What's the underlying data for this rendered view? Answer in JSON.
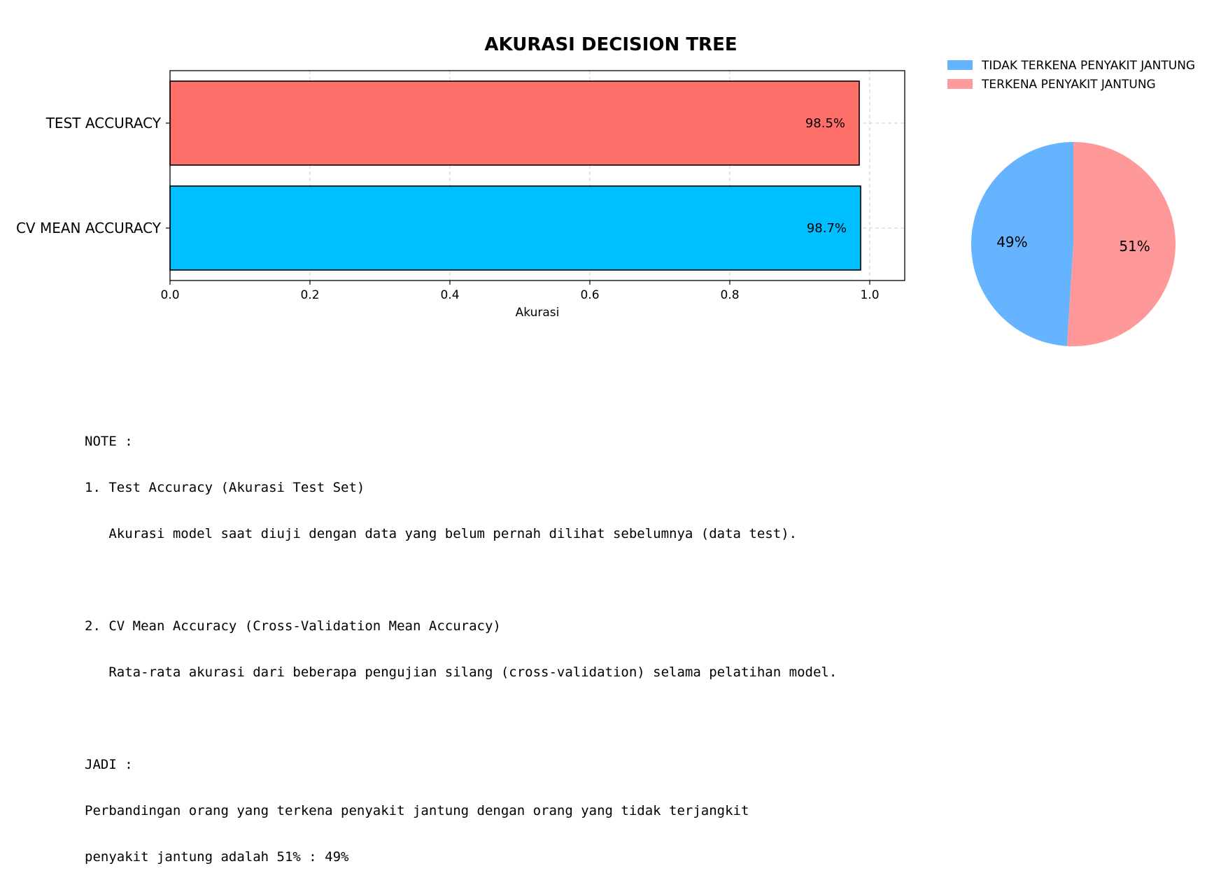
{
  "chart_data": [
    {
      "type": "bar",
      "orientation": "horizontal",
      "title": "AKURASI DECISION TREE",
      "xlabel": "Akurasi",
      "ylabel": "",
      "categories": [
        "TEST ACCURACY",
        "CV MEAN ACCURACY"
      ],
      "values": [
        0.985,
        0.987
      ],
      "value_labels": [
        "98.5%",
        "98.7%"
      ],
      "colors": [
        "#ff6f69",
        "#00bfff"
      ],
      "xlim": [
        0.0,
        1.05
      ],
      "xticks": [
        0.0,
        0.2,
        0.4,
        0.6,
        0.8,
        1.0
      ],
      "xtick_labels": [
        "0.0",
        "0.2",
        "0.4",
        "0.6",
        "0.8",
        "1.0"
      ],
      "grid": true
    },
    {
      "type": "pie",
      "labels": [
        "TIDAK TERKENA PENYAKIT JANTUNG",
        "TERKENA PENYAKIT JANTUNG"
      ],
      "values": [
        49,
        51
      ],
      "value_labels": [
        "49%",
        "51%"
      ],
      "colors": [
        "#66b3ff",
        "#ff9999"
      ],
      "legend_position": "top-right",
      "start_angle": 90
    }
  ],
  "note": {
    "lines": [
      "NOTE :",
      "1. Test Accuracy (Akurasi Test Set)",
      "   Akurasi model saat diuji dengan data yang belum pernah dilihat sebelumnya (data test).",
      "",
      "2. CV Mean Accuracy (Cross-Validation Mean Accuracy)",
      "   Rata-rata akurasi dari beberapa pengujian silang (cross-validation) selama pelatihan model.",
      "",
      "JADI :",
      "Perbandingan orang yang terkena penyakit jantung dengan orang yang tidak terjangkit",
      "penyakit jantung adalah 51% : 49%"
    ]
  }
}
